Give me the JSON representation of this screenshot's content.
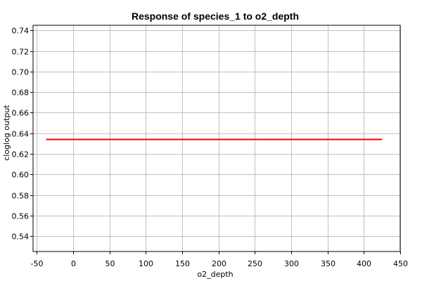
{
  "chart_data": {
    "type": "line",
    "title": "Response of species_1 to o2_depth",
    "xlabel": "o2_depth",
    "ylabel": "cloglog output",
    "xlim": [
      -55,
      450
    ],
    "ylim": [
      0.525,
      0.745
    ],
    "xticks": [
      -50,
      0,
      50,
      100,
      150,
      200,
      250,
      300,
      350,
      400,
      450
    ],
    "yticks": [
      0.54,
      0.56,
      0.58,
      0.6,
      0.62,
      0.64,
      0.66,
      0.68,
      0.7,
      0.72,
      0.74
    ],
    "xtick_labels": [
      "-50",
      "0",
      "50",
      "100",
      "150",
      "200",
      "250",
      "300",
      "350",
      "400",
      "450"
    ],
    "ytick_labels": [
      "0.54",
      "0.56",
      "0.58",
      "0.60",
      "0.62",
      "0.64",
      "0.66",
      "0.68",
      "0.70",
      "0.72",
      "0.74"
    ],
    "grid": true,
    "series": [
      {
        "color": "#ff0000",
        "x": [
          -37,
          425
        ],
        "y": [
          0.634,
          0.634
        ]
      }
    ]
  }
}
